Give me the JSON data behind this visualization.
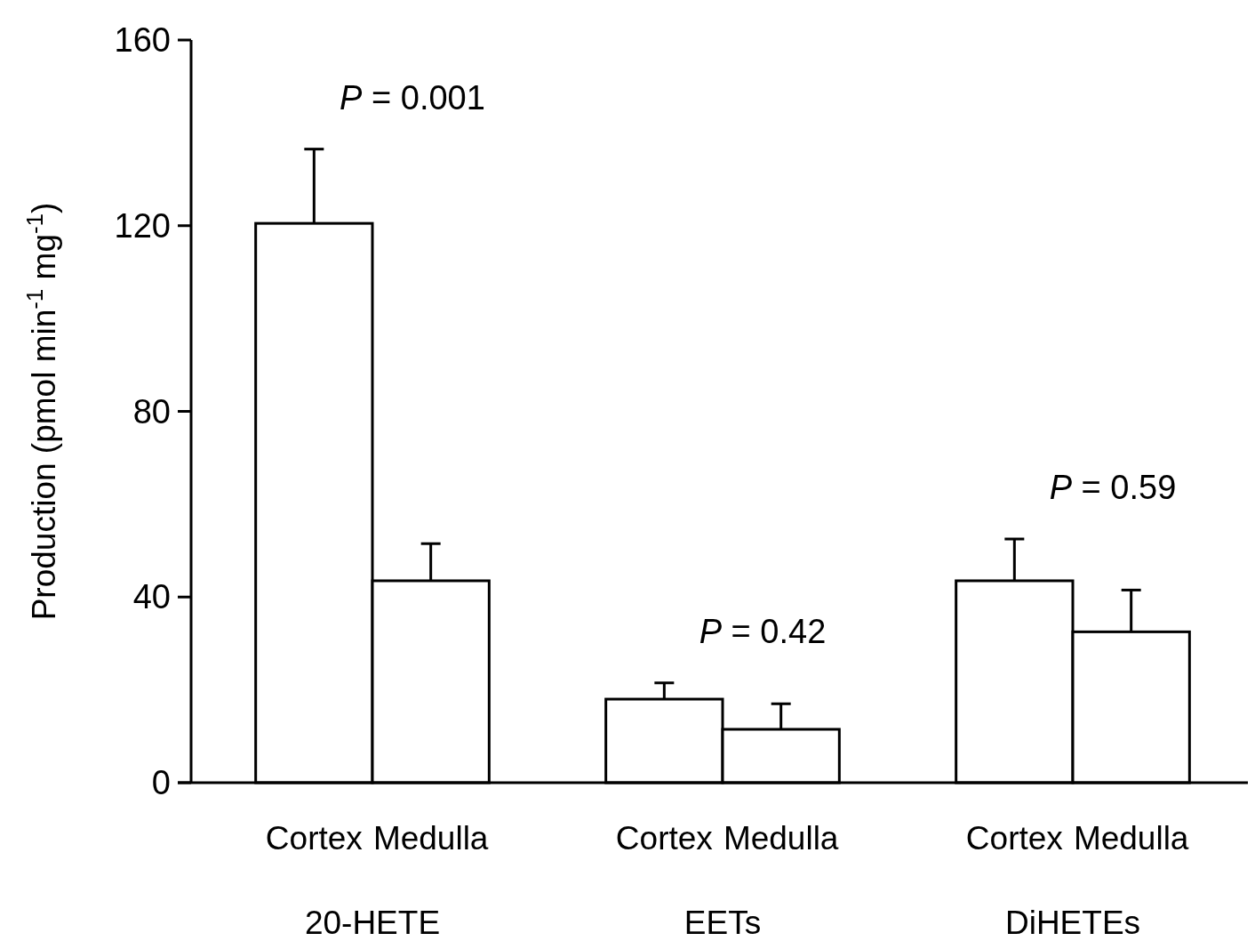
{
  "chart_data": {
    "type": "bar",
    "ylabel": "Production (pmol min$^{-1}$ mg$^{-1}$)",
    "categories": [
      "20-HETE",
      "EETs",
      "DiHETEs"
    ],
    "series": [
      {
        "name": "Cortex",
        "color": "#ffffff",
        "values": [
          120.5,
          18,
          43.5
        ],
        "errors": [
          [
            120.5,
            136.5
          ],
          [
            18,
            21.5
          ],
          [
            43.5,
            52.5
          ]
        ]
      },
      {
        "name": "Medulla",
        "color": "#ffffff",
        "values": [
          43.5,
          11.5,
          32.5
        ],
        "errors": [
          [
            43.5,
            51.5
          ],
          [
            11.5,
            17
          ],
          [
            32.5,
            41.5
          ]
        ]
      }
    ],
    "ylim": [
      0,
      160
    ],
    "yticks": [
      0,
      40,
      80,
      120,
      160
    ],
    "annotations": [
      "P = 0.001",
      "P = 0.42",
      "P = 0.59"
    ]
  }
}
